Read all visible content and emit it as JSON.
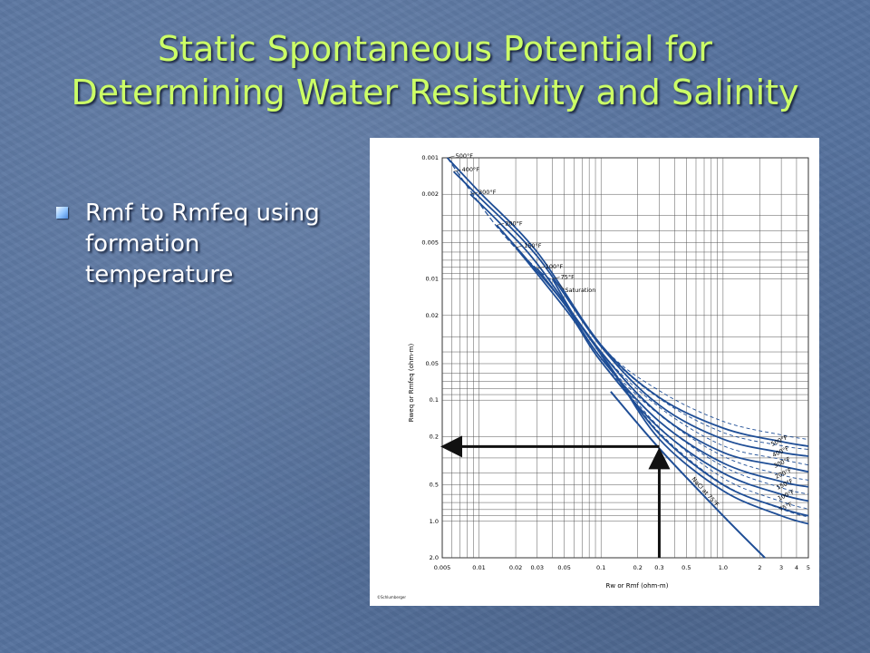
{
  "slide": {
    "title_line1": "Static Spontaneous Potential for",
    "title_line2": "Determining Water Resistivity and Salinity",
    "bullets": [
      "Rmf to Rmfeq using formation temperature"
    ]
  },
  "colors": {
    "title": "#ccff66",
    "background": "#56729e",
    "curve": "#1f4e96",
    "arrow": "#111111"
  },
  "chart_data": {
    "type": "line",
    "title": "",
    "xlabel": "Rw or Rmf (ohm-m)",
    "ylabel": "Rweq or Rmfeq (ohm-m)",
    "x_scale": "log",
    "y_scale": "log",
    "xlim": [
      0.005,
      5
    ],
    "ylim": [
      0.001,
      2
    ],
    "y_inverted": true,
    "grid": true,
    "x_tick_labels": [
      "0.005",
      "0.01",
      "0.02",
      "0.03",
      "0.05",
      "0.1",
      "0.2",
      "0.3",
      "0.5",
      "1.0",
      "2",
      "3",
      "4",
      "5"
    ],
    "x_tick_values": [
      0.005,
      0.01,
      0.02,
      0.03,
      0.05,
      0.1,
      0.2,
      0.3,
      0.5,
      1,
      2,
      3,
      4,
      5
    ],
    "y_tick_labels": [
      "0.001",
      "0.002",
      "0.005",
      "0.01",
      "0.02",
      "0.05",
      "0.1",
      "0.2",
      "0.5",
      "1.0",
      "2.0"
    ],
    "y_tick_values": [
      0.001,
      0.002,
      0.005,
      0.01,
      0.02,
      0.05,
      0.1,
      0.2,
      0.5,
      1,
      2
    ],
    "series": [
      {
        "name": "500°F",
        "x": [
          0.0055,
          0.01,
          0.03,
          0.1,
          0.3,
          1,
          3,
          5
        ],
        "y": [
          0.001,
          0.0019,
          0.006,
          0.035,
          0.095,
          0.17,
          0.22,
          0.24
        ]
      },
      {
        "name": "400°F",
        "x": [
          0.0062,
          0.01,
          0.03,
          0.1,
          0.3,
          1,
          3,
          5
        ],
        "y": [
          0.0013,
          0.0021,
          0.0065,
          0.036,
          0.11,
          0.21,
          0.27,
          0.29
        ]
      },
      {
        "name": "300°F",
        "x": [
          0.0085,
          0.015,
          0.03,
          0.1,
          0.3,
          1,
          3,
          5
        ],
        "y": [
          0.002,
          0.0035,
          0.0075,
          0.04,
          0.13,
          0.27,
          0.35,
          0.39
        ]
      },
      {
        "name": "200°F",
        "x": [
          0.014,
          0.025,
          0.05,
          0.1,
          0.3,
          1,
          3,
          5
        ],
        "y": [
          0.0036,
          0.007,
          0.016,
          0.045,
          0.15,
          0.33,
          0.47,
          0.52
        ]
      },
      {
        "name": "150°F",
        "x": [
          0.02,
          0.035,
          0.06,
          0.1,
          0.3,
          1,
          3,
          5
        ],
        "y": [
          0.0055,
          0.011,
          0.022,
          0.048,
          0.17,
          0.4,
          0.6,
          0.68
        ]
      },
      {
        "name": "100°F",
        "x": [
          0.03,
          0.05,
          0.08,
          0.12,
          0.3,
          1,
          3,
          5
        ],
        "y": [
          0.0082,
          0.016,
          0.03,
          0.055,
          0.19,
          0.5,
          0.78,
          0.9
        ]
      },
      {
        "name": "75°F",
        "x": [
          0.04,
          0.06,
          0.09,
          0.13,
          0.3,
          1,
          3,
          5
        ],
        "y": [
          0.01,
          0.02,
          0.036,
          0.06,
          0.21,
          0.56,
          0.9,
          1.05
        ]
      }
    ],
    "nacl_line": {
      "name": "NaCl at 75°F",
      "x": [
        0.12,
        0.3,
        1,
        2.2
      ],
      "y": [
        0.085,
        0.25,
        0.9,
        2.0
      ]
    },
    "saturation_line": {
      "name": "Saturation",
      "x": [
        0.0055,
        0.014,
        0.03,
        0.045
      ],
      "y": [
        0.001,
        0.0037,
        0.0083,
        0.011
      ]
    },
    "right_labels": [
      "500°F",
      "400°F",
      "300°F",
      "200°F",
      "150°F",
      "100°F",
      "75°F"
    ],
    "annotation": {
      "from_x": 0.3,
      "to_y": 0.25
    },
    "credit": "©Schlumberger"
  }
}
